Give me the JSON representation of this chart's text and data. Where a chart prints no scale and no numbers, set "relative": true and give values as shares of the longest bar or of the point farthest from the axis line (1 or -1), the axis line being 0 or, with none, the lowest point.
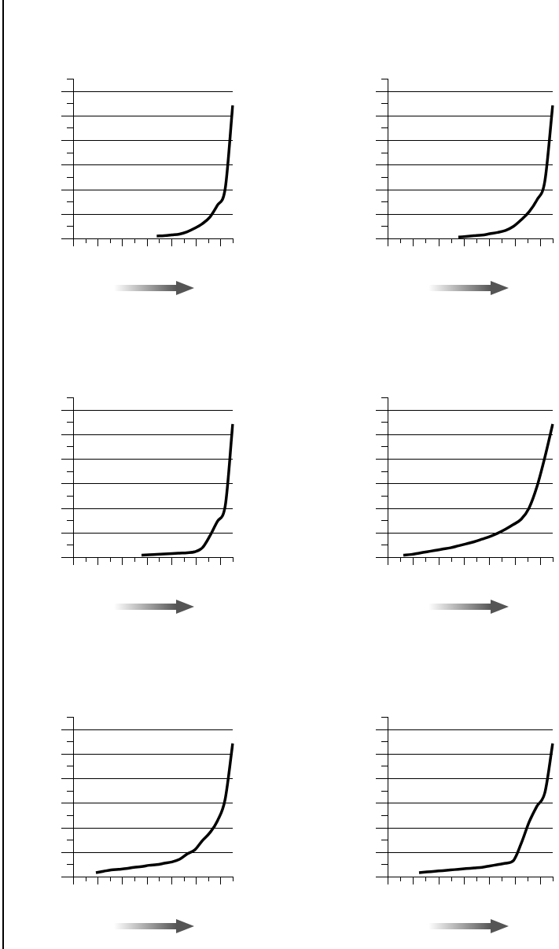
{
  "chart_data": [
    {
      "type": "line",
      "relative": true,
      "grid": "y",
      "marker": "none",
      "categories": [
        null,
        null,
        null,
        null,
        null,
        null,
        null,
        null,
        null,
        null,
        null,
        null,
        null,
        null,
        null,
        null,
        null,
        null,
        null,
        null,
        null,
        null
      ],
      "series": [
        {
          "color": "#000000",
          "values": [
            null,
            null,
            null,
            null,
            null,
            null,
            null,
            null,
            null,
            null,
            null,
            0.018,
            0.02,
            0.026,
            0.033,
            0.05,
            0.077,
            0.11,
            0.16,
            0.25,
            0.37,
            1
          ]
        }
      ]
    },
    {
      "type": "line",
      "relative": true,
      "grid": "y",
      "marker": "none",
      "categories": [
        null,
        null,
        null,
        null,
        null,
        null,
        null,
        null,
        null,
        null,
        null,
        null,
        null,
        null,
        null,
        null,
        null,
        null,
        null,
        null,
        null,
        null
      ],
      "series": [
        {
          "color": "#000000",
          "values": [
            null,
            null,
            null,
            null,
            null,
            null,
            null,
            null,
            null,
            0.01,
            0.015,
            0.02,
            0.025,
            0.035,
            0.045,
            0.06,
            0.09,
            0.14,
            0.2,
            0.29,
            0.43,
            1
          ]
        }
      ]
    },
    {
      "type": "line",
      "relative": true,
      "grid": "y",
      "marker": "none",
      "categories": [
        null,
        null,
        null,
        null,
        null,
        null,
        null,
        null,
        null,
        null,
        null,
        null,
        null,
        null,
        null,
        null,
        null,
        null,
        null,
        null,
        null,
        null
      ],
      "series": [
        {
          "color": "#000000",
          "values": [
            null,
            null,
            null,
            null,
            null,
            null,
            null,
            null,
            null,
            0.015,
            0.018,
            0.021,
            0.024,
            0.027,
            0.03,
            0.033,
            0.04,
            0.07,
            0.16,
            0.27,
            0.38,
            1
          ]
        }
      ]
    },
    {
      "type": "line",
      "relative": true,
      "grid": "y",
      "marker": "none",
      "categories": [
        null,
        null,
        null,
        null,
        null,
        null,
        null,
        null,
        null,
        null,
        null,
        null,
        null,
        null,
        null,
        null,
        null,
        null,
        null,
        null,
        null,
        null
      ],
      "series": [
        {
          "color": "#000000",
          "values": [
            null,
            null,
            0.015,
            0.02,
            0.03,
            0.04,
            0.05,
            0.06,
            0.07,
            0.085,
            0.1,
            0.115,
            0.135,
            0.155,
            0.18,
            0.21,
            0.245,
            0.285,
            0.37,
            0.53,
            0.75,
            1
          ]
        }
      ]
    },
    {
      "type": "line",
      "relative": true,
      "grid": "y",
      "marker": "none",
      "categories": [
        null,
        null,
        null,
        null,
        null,
        null,
        null,
        null,
        null,
        null,
        null,
        null,
        null,
        null,
        null,
        null,
        null,
        null,
        null,
        null,
        null,
        null
      ],
      "series": [
        {
          "color": "#000000",
          "values": [
            null,
            null,
            null,
            0.03,
            0.04,
            0.05,
            0.055,
            0.06,
            0.07,
            0.075,
            0.085,
            0.09,
            0.1,
            0.11,
            0.13,
            0.17,
            0.2,
            0.27,
            0.33,
            0.42,
            0.58,
            1
          ]
        }
      ]
    },
    {
      "type": "line",
      "relative": true,
      "grid": "y",
      "marker": "none",
      "categories": [
        null,
        null,
        null,
        null,
        null,
        null,
        null,
        null,
        null,
        null,
        null,
        null,
        null,
        null,
        null,
        null,
        null,
        null,
        null,
        null,
        null,
        null
      ],
      "series": [
        {
          "color": "#000000",
          "values": [
            null,
            null,
            null,
            null,
            0.03,
            0.035,
            0.04,
            0.045,
            0.05,
            0.055,
            0.06,
            0.065,
            0.07,
            0.08,
            0.09,
            0.1,
            0.12,
            0.25,
            0.41,
            0.53,
            0.63,
            1
          ]
        }
      ]
    }
  ]
}
